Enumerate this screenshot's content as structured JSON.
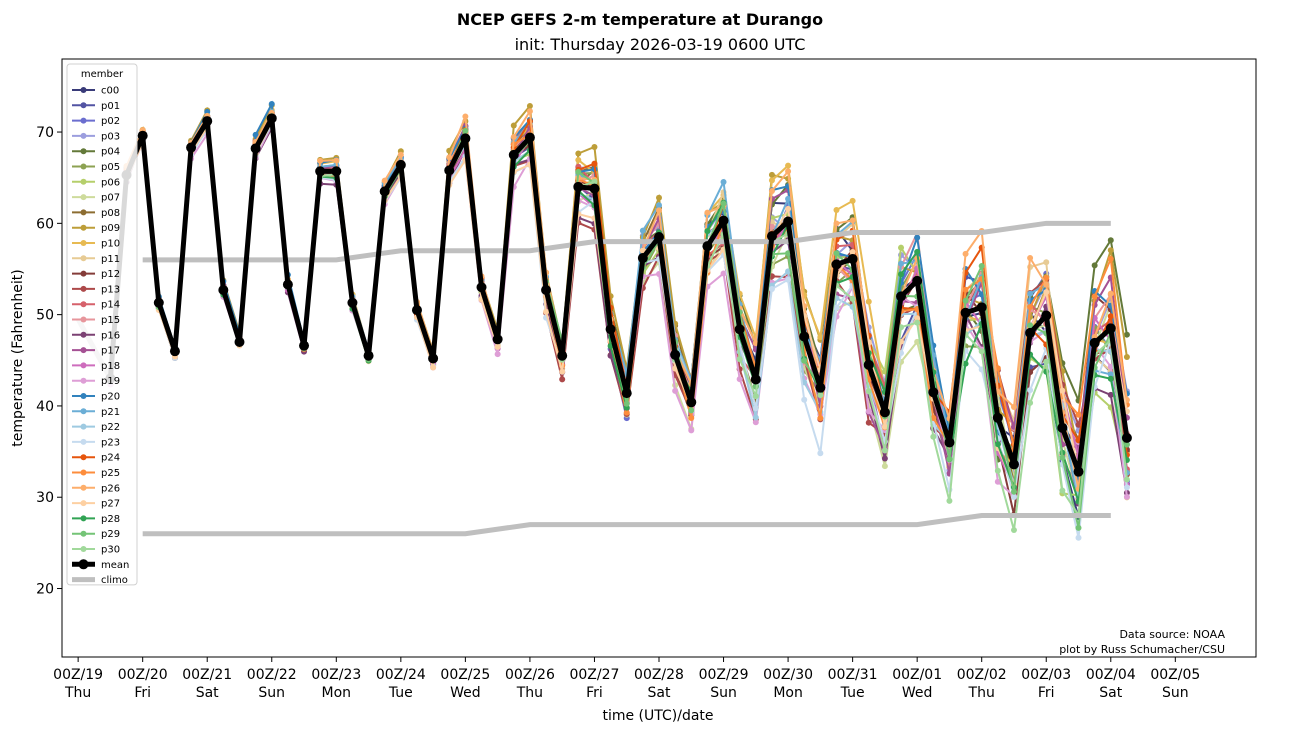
{
  "chart_data": {
    "type": "line",
    "title": "NCEP GEFS 2-m temperature at Durango",
    "subtitle": "init: Thursday 2026-03-19 0600 UTC",
    "xlabel": "time (UTC)/date",
    "ylabel": "temperature (Fahrenheit)",
    "ylim": [
      12.5,
      78
    ],
    "xlim_hours_from_00Z19": [
      -6,
      438
    ],
    "yticks": [
      20,
      30,
      40,
      50,
      60,
      70
    ],
    "xticks": [
      {
        "hour": 0,
        "date": "00Z/19",
        "day": "Thu"
      },
      {
        "hour": 24,
        "date": "00Z/20",
        "day": "Fri"
      },
      {
        "hour": 48,
        "date": "00Z/21",
        "day": "Sat"
      },
      {
        "hour": 72,
        "date": "00Z/22",
        "day": "Sun"
      },
      {
        "hour": 96,
        "date": "00Z/23",
        "day": "Mon"
      },
      {
        "hour": 120,
        "date": "00Z/24",
        "day": "Tue"
      },
      {
        "hour": 144,
        "date": "00Z/25",
        "day": "Wed"
      },
      {
        "hour": 168,
        "date": "00Z/26",
        "day": "Thu"
      },
      {
        "hour": 192,
        "date": "00Z/27",
        "day": "Fri"
      },
      {
        "hour": 216,
        "date": "00Z/28",
        "day": "Sat"
      },
      {
        "hour": 240,
        "date": "00Z/29",
        "day": "Sun"
      },
      {
        "hour": 264,
        "date": "00Z/30",
        "day": "Mon"
      },
      {
        "hour": 288,
        "date": "00Z/31",
        "day": "Tue"
      },
      {
        "hour": 312,
        "date": "00Z/01",
        "day": "Wed"
      },
      {
        "hour": 336,
        "date": "00Z/02",
        "day": "Thu"
      },
      {
        "hour": 360,
        "date": "00Z/03",
        "day": "Fri"
      },
      {
        "hour": 384,
        "date": "00Z/04",
        "day": "Sat"
      },
      {
        "hour": 408,
        "date": "00Z/05",
        "day": "Sun"
      }
    ],
    "grid": false,
    "legend": {
      "title": "member",
      "placement": "top-left",
      "entries": [
        {
          "name": "c00",
          "color": "#393b79"
        },
        {
          "name": "p01",
          "color": "#5254a3"
        },
        {
          "name": "p02",
          "color": "#6b6ecf"
        },
        {
          "name": "p03",
          "color": "#9c9ede"
        },
        {
          "name": "p04",
          "color": "#637939"
        },
        {
          "name": "p05",
          "color": "#8ca252"
        },
        {
          "name": "p06",
          "color": "#b5cf6b"
        },
        {
          "name": "p07",
          "color": "#cedb9c"
        },
        {
          "name": "p08",
          "color": "#8c6d31"
        },
        {
          "name": "p09",
          "color": "#bd9e39"
        },
        {
          "name": "p10",
          "color": "#e7ba52"
        },
        {
          "name": "p11",
          "color": "#e7cb94"
        },
        {
          "name": "p12",
          "color": "#843c39"
        },
        {
          "name": "p13",
          "color": "#ad494a"
        },
        {
          "name": "p14",
          "color": "#d6616b"
        },
        {
          "name": "p15",
          "color": "#e7969c"
        },
        {
          "name": "p16",
          "color": "#7b4173"
        },
        {
          "name": "p17",
          "color": "#a55194"
        },
        {
          "name": "p18",
          "color": "#ce6dbd"
        },
        {
          "name": "p19",
          "color": "#de9ed6"
        },
        {
          "name": "p20",
          "color": "#3182bd"
        },
        {
          "name": "p21",
          "color": "#6baed6"
        },
        {
          "name": "p22",
          "color": "#9ecae1"
        },
        {
          "name": "p23",
          "color": "#c6dbef"
        },
        {
          "name": "p24",
          "color": "#e6550d"
        },
        {
          "name": "p25",
          "color": "#fd8d3c"
        },
        {
          "name": "p26",
          "color": "#fdae6b"
        },
        {
          "name": "p27",
          "color": "#fdd0a2"
        },
        {
          "name": "p28",
          "color": "#31a354"
        },
        {
          "name": "p29",
          "color": "#74c476"
        },
        {
          "name": "p30",
          "color": "#a1d99b"
        },
        {
          "name": "mean",
          "color": "#000000"
        },
        {
          "name": "climo",
          "color": "#bfbfbf"
        }
      ]
    },
    "series": [
      {
        "name": "mean",
        "color": "#000000",
        "start_hour": 12,
        "step_hours": 6,
        "values": [
          43.0,
          65.3,
          69.6,
          51.3,
          46.0,
          68.3,
          71.2,
          52.7,
          47.0,
          68.2,
          71.5,
          53.3,
          46.6,
          65.7,
          65.7,
          51.3,
          45.5,
          63.5,
          66.4,
          50.5,
          45.2,
          65.8,
          69.3,
          53.0,
          47.3,
          67.5,
          69.4,
          52.7,
          45.5,
          64.0,
          63.8,
          48.4,
          41.4,
          56.2,
          58.5,
          45.6,
          40.4,
          57.5,
          60.3,
          48.4,
          42.9,
          58.6,
          60.2,
          47.6,
          42.0,
          55.5,
          56.1,
          44.5,
          39.3,
          52.0,
          53.7,
          41.5,
          36.0,
          50.2,
          50.8,
          38.7,
          33.6,
          48.0,
          49.9,
          37.6,
          32.8,
          46.9,
          48.5,
          36.5
        ]
      }
    ],
    "climo": {
      "name": "climo",
      "color": "#bfbfbf",
      "lead_in": [
        {
          "hour": 0,
          "value": 49.5
        },
        {
          "hour": 12,
          "value": 43.0
        }
      ],
      "max": [
        {
          "hour": 24,
          "value": 56
        },
        {
          "hour": 48,
          "value": 56
        },
        {
          "hour": 72,
          "value": 56
        },
        {
          "hour": 96,
          "value": 56
        },
        {
          "hour": 120,
          "value": 57
        },
        {
          "hour": 144,
          "value": 57
        },
        {
          "hour": 168,
          "value": 57
        },
        {
          "hour": 192,
          "value": 58
        },
        {
          "hour": 216,
          "value": 58
        },
        {
          "hour": 240,
          "value": 58
        },
        {
          "hour": 264,
          "value": 58
        },
        {
          "hour": 288,
          "value": 59
        },
        {
          "hour": 312,
          "value": 59
        },
        {
          "hour": 336,
          "value": 59
        },
        {
          "hour": 360,
          "value": 60
        },
        {
          "hour": 384,
          "value": 60
        }
      ],
      "min": [
        {
          "hour": 24,
          "value": 26
        },
        {
          "hour": 48,
          "value": 26
        },
        {
          "hour": 72,
          "value": 26
        },
        {
          "hour": 96,
          "value": 26
        },
        {
          "hour": 120,
          "value": 26
        },
        {
          "hour": 144,
          "value": 26
        },
        {
          "hour": 168,
          "value": 27
        },
        {
          "hour": 192,
          "value": 27
        },
        {
          "hour": 216,
          "value": 27
        },
        {
          "hour": 240,
          "value": 27
        },
        {
          "hour": 264,
          "value": 27
        },
        {
          "hour": 288,
          "value": 27
        },
        {
          "hour": 312,
          "value": 27
        },
        {
          "hour": 336,
          "value": 28
        },
        {
          "hour": 360,
          "value": 28
        },
        {
          "hour": 384,
          "value": 28
        }
      ]
    },
    "member_spread_note": "31 ensemble members (c00, p01-p30) plotted around the mean; spread grows with lead time (approx. +/-1 F early to +/-12 F late)",
    "annotations": [
      "Data source: NOAA",
      "plot by Russ Schumacher/CSU"
    ]
  }
}
